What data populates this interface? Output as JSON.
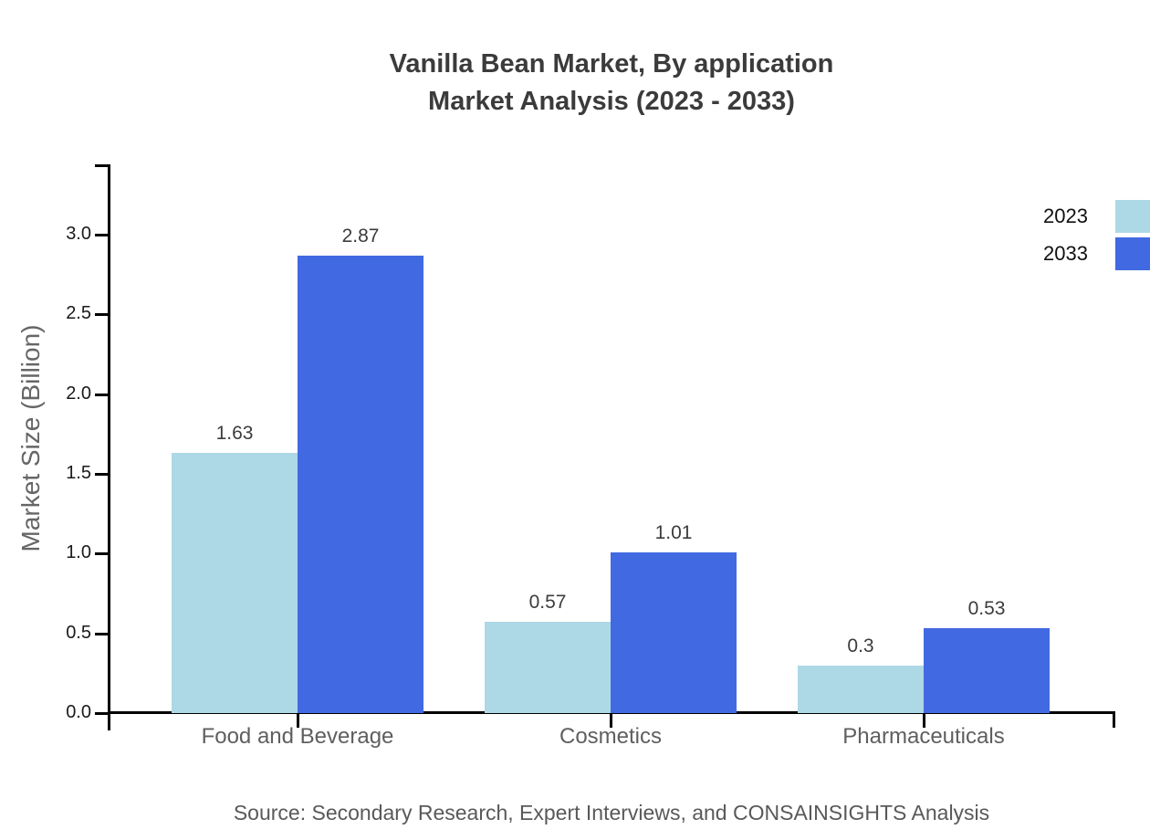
{
  "title": {
    "line1": "Vanilla Bean Market, By application",
    "line2": "Market Analysis (2023 - 2033)"
  },
  "source": "Source: Secondary Research, Expert Interviews, and CONSAINSIGHTS Analysis",
  "chart_data": {
    "type": "bar",
    "title": "Vanilla Bean Market, By application Market Analysis (2023 - 2033)",
    "categories": [
      "Food and Beverage",
      "Cosmetics",
      "Pharmaceuticals"
    ],
    "series": [
      {
        "name": "2023",
        "color": "#ADD8E6",
        "values": [
          1.63,
          0.57,
          0.3
        ]
      },
      {
        "name": "2033",
        "color": "#4169E1",
        "values": [
          2.87,
          1.01,
          0.53
        ]
      }
    ],
    "xlabel": "",
    "ylabel": "Market Size (Billion)",
    "ylim": [
      0,
      3.44
    ],
    "yticks": [
      0.0,
      0.5,
      1.0,
      1.5,
      2.0,
      2.5,
      3.0
    ],
    "ytick_labels": [
      "0.0",
      "0.5",
      "1.0",
      "1.5",
      "2.0",
      "2.5",
      "3.0"
    ],
    "grid": false,
    "bar_value_labels": true,
    "legend_position": "upper right outside",
    "colors": {
      "axis": "#000000",
      "title_text": "#3b3b3b",
      "tick_text": "#1a1a1a",
      "category_text": "#5f5f5f",
      "value_text": "#3c3c3c",
      "ylabel_text": "#666666",
      "source_text": "#595959",
      "background": "#ffffff"
    }
  }
}
